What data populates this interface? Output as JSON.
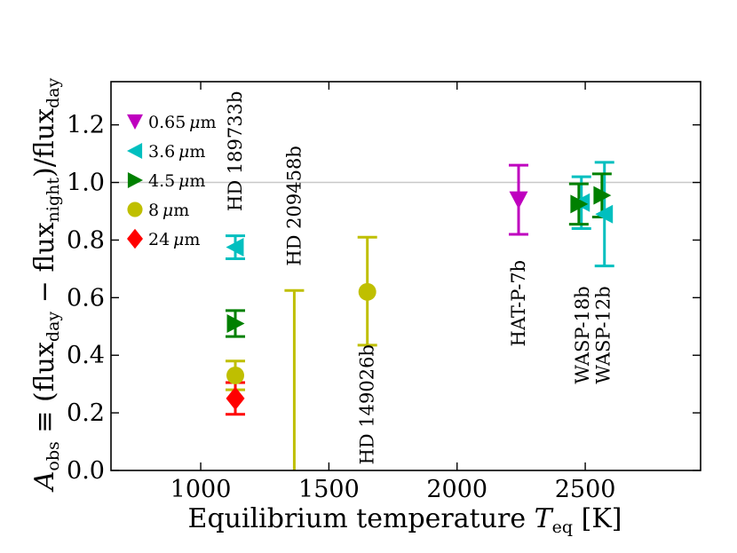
{
  "chart_data": {
    "type": "scatter",
    "xlabel": "Equilibrium temperature T_eq [K]",
    "xlabel_main": "Equilibrium temperature ",
    "xlabel_var": "T",
    "xlabel_sub": "eq",
    "xlabel_unit": " [K]",
    "ylabel": "A_obs ≡ (flux_day − flux_night)/flux_day",
    "ylabel_parts": {
      "a": "A",
      "a_sub": "obs",
      "equiv": " ≡ (flux",
      "day1": "day",
      "minus": " − flux",
      "night": "night",
      "slash": ")/flux",
      "day2": "day"
    },
    "xlim": [
      650,
      2950
    ],
    "ylim": [
      0.0,
      1.35
    ],
    "xticks": [
      1000,
      1500,
      2000,
      2500
    ],
    "xtick_labels": [
      "1000",
      "1500",
      "2000",
      "2500"
    ],
    "yticks": [
      0.0,
      0.2,
      0.4,
      0.6,
      0.8,
      1.0,
      1.2
    ],
    "ytick_labels": [
      "0.0",
      "0.2",
      "0.4",
      "0.6",
      "0.8",
      "1.0",
      "1.2"
    ],
    "reference_line_y": 1.0,
    "legend_position": "top-left",
    "series": [
      {
        "name": "0.65 μm",
        "label_num": "0.65",
        "color": "#bf00bf",
        "marker": "triangle-down",
        "points": [
          {
            "x": 2240,
            "y": 0.94,
            "ylo": 0.82,
            "yhi": 1.06
          }
        ]
      },
      {
        "name": "3.6 μm",
        "label_num": "3.6",
        "color": "#00bfbf",
        "marker": "triangle-left",
        "points": [
          {
            "x": 1135,
            "y": 0.775,
            "ylo": 0.735,
            "yhi": 0.815
          },
          {
            "x": 2485,
            "y": 0.93,
            "ylo": 0.84,
            "yhi": 1.02
          },
          {
            "x": 2575,
            "y": 0.89,
            "ylo": 0.71,
            "yhi": 1.07
          }
        ]
      },
      {
        "name": "4.5 μm",
        "label_num": "4.5",
        "color": "#008000",
        "marker": "triangle-right",
        "points": [
          {
            "x": 1135,
            "y": 0.51,
            "ylo": 0.465,
            "yhi": 0.555
          },
          {
            "x": 2475,
            "y": 0.925,
            "ylo": 0.855,
            "yhi": 0.995
          },
          {
            "x": 2565,
            "y": 0.955,
            "ylo": 0.88,
            "yhi": 1.03
          }
        ]
      },
      {
        "name": "8 μm",
        "label_num": "8",
        "color": "#bfbf00",
        "marker": "circle",
        "points": [
          {
            "x": 1135,
            "y": 0.33,
            "ylo": 0.28,
            "yhi": 0.38
          },
          {
            "x": 1365,
            "y": null,
            "ylo": 0.0,
            "yhi": 0.625
          },
          {
            "x": 1650,
            "y": 0.62,
            "ylo": 0.435,
            "yhi": 0.81
          }
        ]
      },
      {
        "name": "24 μm",
        "label_num": "24",
        "color": "#ff0000",
        "marker": "diamond",
        "points": [
          {
            "x": 1135,
            "y": 0.25,
            "ylo": 0.195,
            "yhi": 0.305
          }
        ]
      }
    ],
    "planet_labels": [
      {
        "text": "HD 189733b",
        "x": 1135,
        "y": 0.9
      },
      {
        "text": "HD 209458b",
        "x": 1365,
        "y": 0.71
      },
      {
        "text": "HD 149026b",
        "x": 1650,
        "y": 0.02
      },
      {
        "text": "HAT-P-7b",
        "x": 2240,
        "y": 0.43
      },
      {
        "text": "WASP-18b",
        "x": 2490,
        "y": 0.3
      },
      {
        "text": "WASP-12b",
        "x": 2570,
        "y": 0.3
      }
    ]
  }
}
